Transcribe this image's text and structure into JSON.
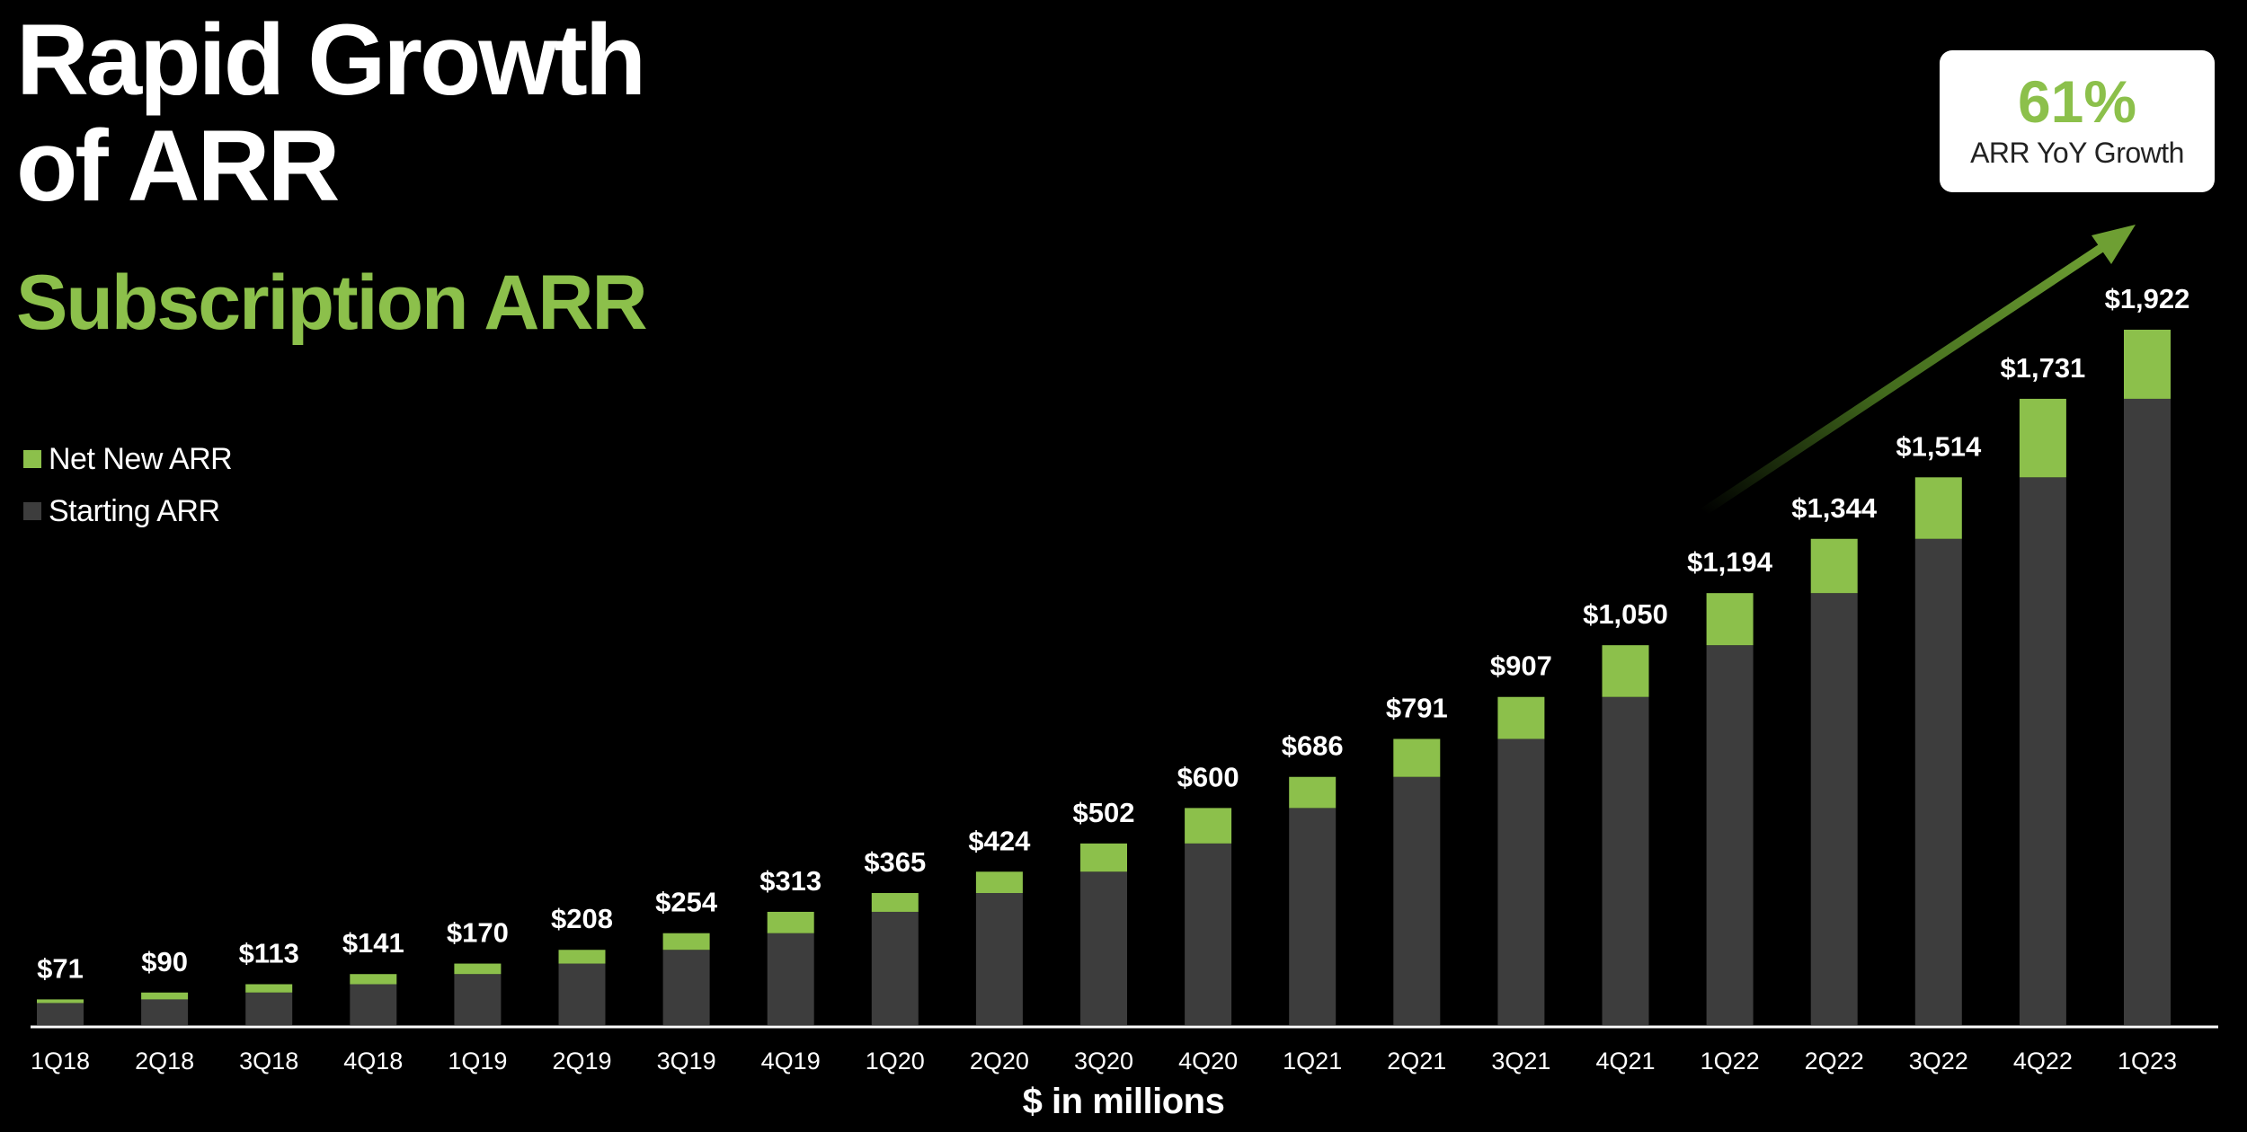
{
  "title_line1": "Rapid Growth",
  "title_line2": "of ARR",
  "subtitle": "Subscription ARR",
  "legend": {
    "net_new": "Net New ARR",
    "starting": "Starting ARR"
  },
  "callout": {
    "value": "61%",
    "label": "ARR YoY Growth"
  },
  "units_note": "$ in millions",
  "colors": {
    "net_new": "#8cc04b",
    "starting": "#3d3d3d",
    "axis": "#ffffff",
    "background": "#000000"
  },
  "chart_data": {
    "type": "bar",
    "stacked": true,
    "title": "Subscription ARR",
    "ylabel": "$ in millions",
    "ylim": [
      0,
      1922
    ],
    "grid": false,
    "legend_position": "top-left",
    "categories": [
      "1Q18",
      "2Q18",
      "3Q18",
      "4Q18",
      "1Q19",
      "2Q19",
      "3Q19",
      "4Q19",
      "1Q20",
      "2Q20",
      "3Q20",
      "4Q20",
      "1Q21",
      "2Q21",
      "3Q21",
      "4Q21",
      "1Q22",
      "2Q22",
      "3Q22",
      "4Q22",
      "1Q23"
    ],
    "series": [
      {
        "name": "Starting ARR",
        "values": [
          61,
          71,
          90,
          113,
          141,
          170,
          208,
          254,
          313,
          365,
          424,
          502,
          600,
          686,
          791,
          907,
          1050,
          1194,
          1344,
          1514,
          1731
        ]
      },
      {
        "name": "Net New ARR",
        "values": [
          10,
          19,
          23,
          28,
          29,
          38,
          46,
          59,
          52,
          59,
          78,
          98,
          86,
          105,
          116,
          143,
          144,
          150,
          170,
          217,
          191
        ]
      }
    ],
    "totals": [
      71,
      90,
      113,
      141,
      170,
      208,
      254,
      313,
      365,
      424,
      502,
      600,
      686,
      791,
      907,
      1050,
      1194,
      1344,
      1514,
      1731,
      1922
    ],
    "total_labels": [
      "$71",
      "$90",
      "$113",
      "$141",
      "$170",
      "$208",
      "$254",
      "$313",
      "$365",
      "$424",
      "$502",
      "$600",
      "$686",
      "$791",
      "$907",
      "$1,050",
      "$1,194",
      "$1,344",
      "$1,514",
      "$1,731",
      "$1,922"
    ]
  }
}
